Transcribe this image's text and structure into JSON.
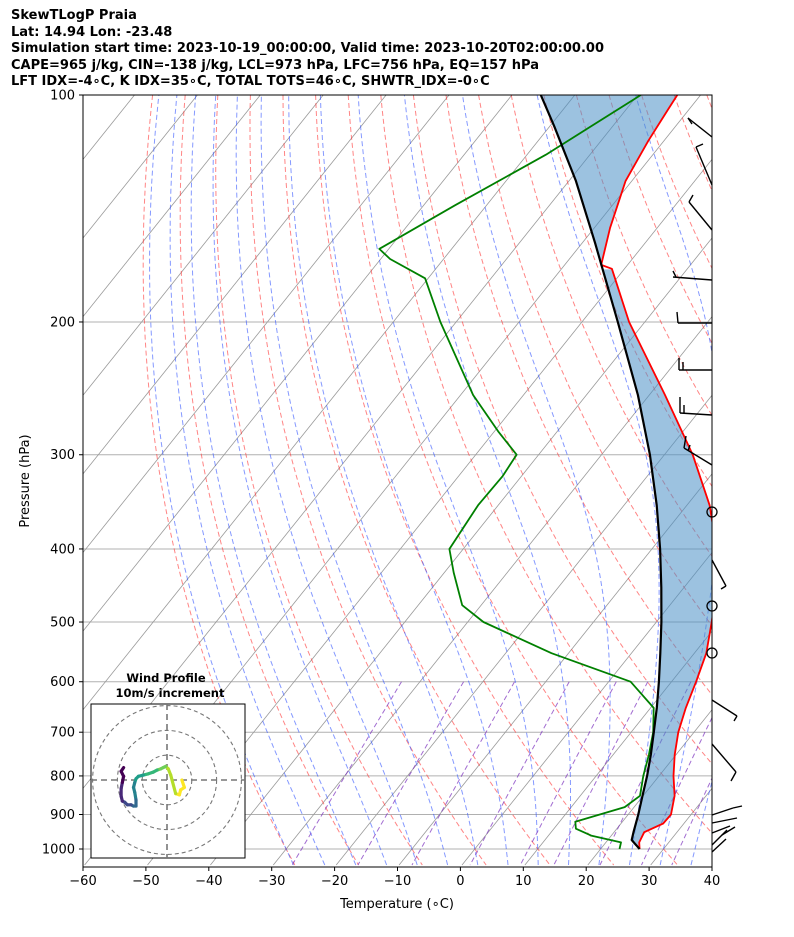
{
  "header": {
    "title": "SkewTLogP Praia",
    "location": "Lat: 14.94   Lon: -23.48",
    "times": "Simulation start time: 2023-10-19_00:00:00, Valid time: 2023-10-20T02:00:00.00",
    "indices1": "CAPE=965 j/kg, CIN=-138 j/kg, LCL=973 hPa, LFC=756 hPa, EQ=157 hPa",
    "indices2": "LFT IDX=-4∘C, K IDX=35∘C, TOTAL TOTS=46∘C, SHWTR_IDX=-0∘C"
  },
  "chart_data": [
    {
      "type": "line",
      "subtype": "skew-t log-p",
      "xlabel": "Temperature (∘C)",
      "ylabel": "Pressure (hPa)",
      "xlim": [
        -60,
        40
      ],
      "ylim": [
        1050,
        100
      ],
      "y_scale": "log",
      "x_ticks": [
        -60,
        -50,
        -40,
        -30,
        -20,
        -10,
        0,
        10,
        20,
        30,
        40
      ],
      "y_ticks": [
        1000,
        900,
        800,
        700,
        600,
        500,
        400,
        300,
        200,
        100
      ],
      "grid": true,
      "colors": {
        "temperature": "#ff0000",
        "dewpoint": "#008000",
        "parcel": "#000000",
        "cape_fill": "#e87f7f",
        "cin_fill": "#4a8fc6",
        "dry_adiabats": "#ff3333",
        "moist_adiabats": "#3355ff",
        "mixing_ratio": "#7b2fbe",
        "isotherms": "#999999"
      },
      "series": [
        {
          "name": "temperature",
          "points": [
            [
              1000,
              26.2
            ],
            [
              980,
              25.3
            ],
            [
              950,
              24.8
            ],
            [
              925,
              26.7
            ],
            [
              900,
              26.8
            ],
            [
              850,
              25.0
            ],
            [
              800,
              22.3
            ],
            [
              750,
              19.8
            ],
            [
              700,
              17.5
            ],
            [
              650,
              15.6
            ],
            [
              600,
              13.9
            ],
            [
              550,
              11.9
            ],
            [
              500,
              8.8
            ],
            [
              450,
              5.2
            ],
            [
              400,
              0.3
            ],
            [
              350,
              -6.4
            ],
            [
              300,
              -15.5
            ],
            [
              250,
              -27.5
            ],
            [
              200,
              -42.5
            ],
            [
              170,
              -52.0
            ],
            [
              168,
              -54.2
            ],
            [
              150,
              -57.5
            ],
            [
              130,
              -61.0
            ],
            [
              115,
              -62.5
            ],
            [
              105,
              -63.3
            ],
            [
              100,
              -63.7
            ]
          ]
        },
        {
          "name": "dewpoint",
          "points": [
            [
              1000,
              23.0
            ],
            [
              980,
              22.4
            ],
            [
              960,
              16.8
            ],
            [
              940,
              13.5
            ],
            [
              920,
              12.5
            ],
            [
              880,
              18.5
            ],
            [
              850,
              19.5
            ],
            [
              800,
              17.5
            ],
            [
              750,
              15.7
            ],
            [
              700,
              13.5
            ],
            [
              650,
              10.5
            ],
            [
              600,
              3.5
            ],
            [
              550,
              -12.7
            ],
            [
              500,
              -27.5
            ],
            [
              475,
              -33.0
            ],
            [
              430,
              -38.5
            ],
            [
              400,
              -42.2
            ],
            [
              350,
              -43.2
            ],
            [
              320,
              -43.0
            ],
            [
              300,
              -43.5
            ],
            [
              280,
              -49.2
            ],
            [
              250,
              -58.0
            ],
            [
              200,
              -72.5
            ],
            [
              175,
              -80.5
            ],
            [
              165,
              -88.5
            ],
            [
              160,
              -91.5
            ],
            [
              140,
              -85.0
            ],
            [
              120,
              -77.0
            ],
            [
              100,
              -69.5
            ]
          ]
        },
        {
          "name": "parcel",
          "points": [
            [
              1000,
              26.2
            ],
            [
              973,
              23.8
            ],
            [
              950,
              23.1
            ],
            [
              900,
              21.6
            ],
            [
              850,
              19.9
            ],
            [
              800,
              18.1
            ],
            [
              750,
              16.0
            ],
            [
              700,
              13.6
            ],
            [
              650,
              11.0
            ],
            [
              600,
              8.0
            ],
            [
              550,
              4.6
            ],
            [
              500,
              0.8
            ],
            [
              450,
              -3.6
            ],
            [
              400,
              -8.7
            ],
            [
              350,
              -14.8
            ],
            [
              300,
              -22.3
            ],
            [
              250,
              -31.8
            ],
            [
              200,
              -44.3
            ],
            [
              157,
              -58.0
            ],
            [
              130,
              -68.9
            ],
            [
              110,
              -79.3
            ],
            [
              100,
              -85.4
            ]
          ]
        }
      ]
    },
    {
      "type": "line",
      "subtype": "hodograph",
      "title": "Wind Profile",
      "subtitle": "10m/s increment",
      "colormap": "viridis",
      "points": [
        [
          6.0,
          0.0
        ],
        [
          7.0,
          -3.0
        ],
        [
          5.5,
          -4.0
        ],
        [
          5.0,
          -6.0
        ],
        [
          3.5,
          -5.5
        ],
        [
          1.5,
          2.0
        ],
        [
          0.5,
          4.5
        ],
        [
          -0.5,
          5.5
        ],
        [
          -1.5,
          5.0
        ],
        [
          -2.5,
          4.5
        ],
        [
          -4.0,
          4.0
        ],
        [
          -5.5,
          3.2
        ],
        [
          -7.5,
          2.5
        ],
        [
          -9.5,
          2.0
        ],
        [
          -11.5,
          1.5
        ],
        [
          -12.5,
          0.5
        ],
        [
          -13.0,
          -1.0
        ],
        [
          -13.5,
          -3.0
        ],
        [
          -13.0,
          -5.0
        ],
        [
          -12.5,
          -8.0
        ],
        [
          -12.5,
          -10.5
        ],
        [
          -13.5,
          -10.5
        ],
        [
          -14.5,
          -10.0
        ],
        [
          -16.0,
          -10.0
        ],
        [
          -17.0,
          -9.0
        ],
        [
          -18.0,
          -8.5
        ],
        [
          -18.5,
          -6.5
        ],
        [
          -18.5,
          -3.5
        ],
        [
          -18.0,
          -1.0
        ],
        [
          -17.5,
          1.5
        ],
        [
          -18.5,
          3.5
        ],
        [
          -17.5,
          5.0
        ]
      ]
    }
  ]
}
